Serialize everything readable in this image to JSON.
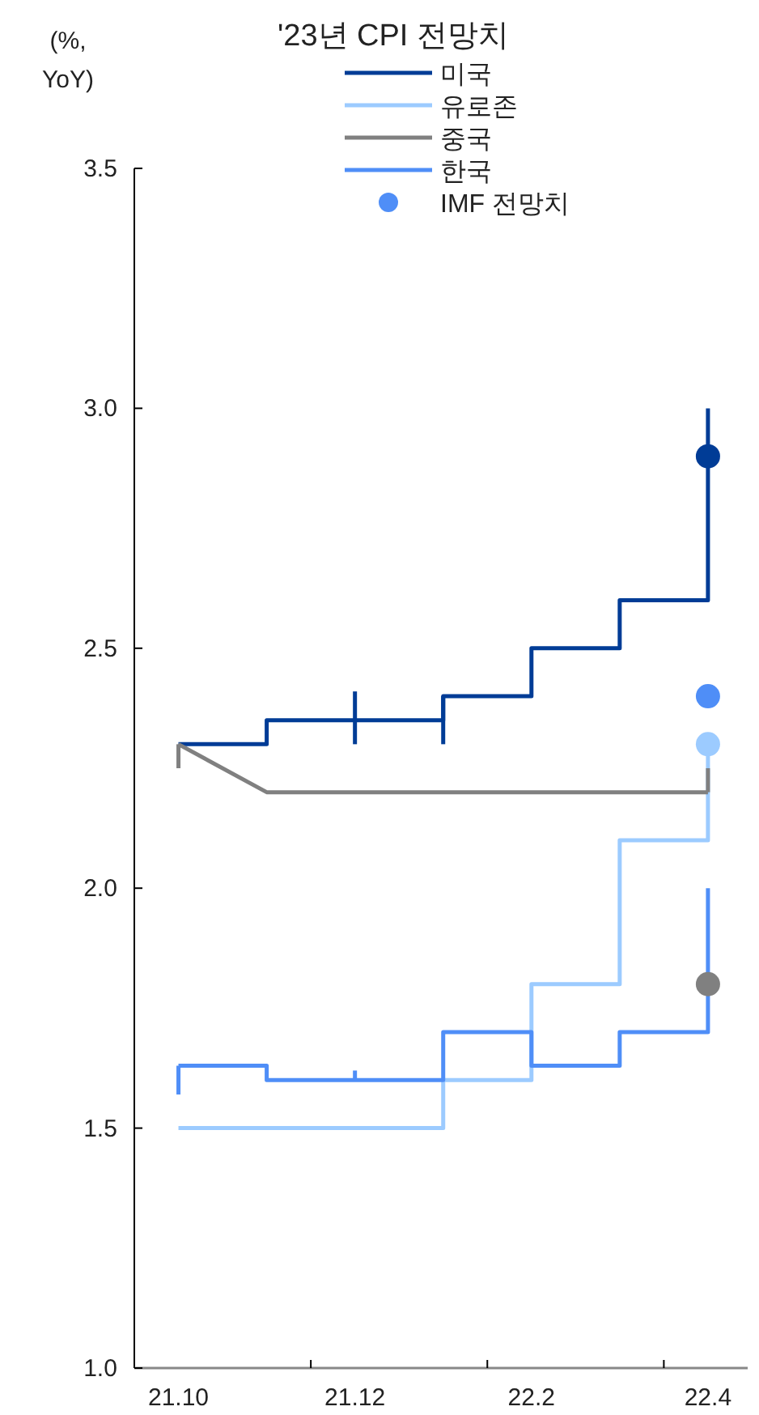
{
  "chart_data": {
    "type": "step",
    "title": "'23년 CPI 전망치",
    "ylabel": "(%, YoY)",
    "legend": "top",
    "categories": [
      "21.10",
      null,
      "21.12",
      null,
      "22.2",
      null,
      "22.4"
    ],
    "ylim": [
      1.0,
      3.5
    ],
    "yticks": [
      {
        "value": 1,
        "label": "1.0"
      },
      1.5,
      {
        "value": 2,
        "label": "2.0"
      },
      2.5,
      {
        "value": 3,
        "label": "3.0"
      },
      3.5
    ],
    "series": [
      {
        "name": "미국",
        "color": "#003c96",
        "values": [
          2.3,
          2.35,
          2.35,
          2.4,
          2.5,
          2.6,
          3.0
        ],
        "errors": [
          null,
          null,
          [
            2.3,
            2.41
          ],
          [
            2.3,
            2.4
          ],
          null,
          null,
          null
        ]
      },
      {
        "name": "유로존",
        "color": "#9ccbff",
        "values": [
          1.5,
          1.5,
          1.5,
          1.6,
          1.8,
          2.1,
          2.3
        ]
      },
      {
        "name": "중국",
        "type": "line",
        "color": "#808080",
        "values": [
          2.3,
          2.2,
          2.2,
          2.2,
          2.2,
          2.2,
          2.2
        ],
        "errors": [
          [
            2.25,
            2.3
          ],
          null,
          null,
          null,
          null,
          null,
          [
            2.2,
            2.25
          ]
        ]
      },
      {
        "name": "한국",
        "color": "#4f8ef7",
        "values": [
          1.63,
          1.6,
          1.6,
          1.7,
          1.63,
          1.7,
          2.0
        ],
        "errors": [
          [
            1.57,
            1.63
          ],
          null,
          [
            1.6,
            1.62
          ],
          null,
          null,
          null,
          null
        ]
      },
      {
        "name": "IMF 전망치",
        "type": "scatter",
        "color": "#4f8ef7",
        "x": [
          "22.4",
          "22.4",
          "22.4",
          "22.4"
        ],
        "values": [
          2.9,
          2.4,
          2.3,
          1.8
        ],
        "colors": [
          "#003c96",
          "#4f8ef7",
          "#9ccbff",
          "#808080"
        ]
      }
    ]
  }
}
